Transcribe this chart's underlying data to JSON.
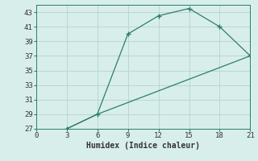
{
  "line1_x": [
    3,
    6,
    9,
    12,
    15,
    18,
    21
  ],
  "line1_y": [
    27.0,
    29.0,
    40.0,
    42.5,
    43.5,
    41.0,
    37.0
  ],
  "line2_x": [
    3,
    6,
    21
  ],
  "line2_y": [
    27.0,
    29.0,
    37.0
  ],
  "line_color": "#2d7d6e",
  "marker": "+",
  "marker_size": 4,
  "marker_linewidth": 1.0,
  "linewidth": 0.9,
  "xlabel": "Humidex (Indice chaleur)",
  "xlim": [
    0,
    21
  ],
  "ylim": [
    27,
    44
  ],
  "xticks": [
    0,
    3,
    6,
    9,
    12,
    15,
    18,
    21
  ],
  "yticks": [
    27,
    29,
    31,
    33,
    35,
    37,
    39,
    41,
    43
  ],
  "grid_color": "#b8d8d0",
  "bg_color": "#d8eeea",
  "xlabel_fontsize": 7,
  "tick_fontsize": 6.5
}
